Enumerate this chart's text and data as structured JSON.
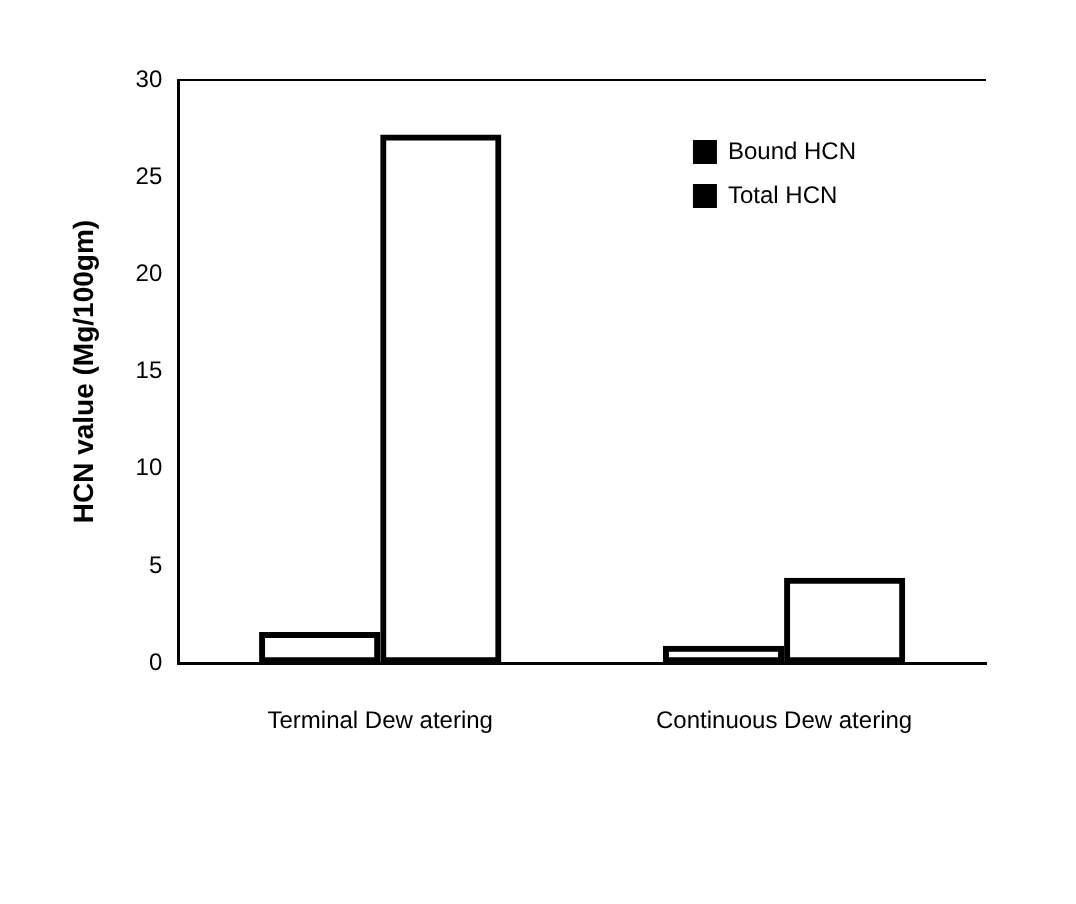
{
  "chart_data": {
    "type": "bar",
    "ylabel": "HCN value (Mg/100gm)",
    "categories": [
      "Terminal Dew atering",
      "Continuous Dew atering"
    ],
    "series": [
      {
        "name": "Bound HCN",
        "color": "#000000",
        "values": [
          1.6,
          0.9
        ]
      },
      {
        "name": "Total HCN",
        "color": "#000000",
        "values": [
          27.2,
          4.4
        ]
      }
    ],
    "ylim": [
      0,
      30
    ],
    "yticks": [
      0,
      5,
      10,
      15,
      20,
      25,
      30
    ],
    "grid": false,
    "legend": "top right"
  }
}
